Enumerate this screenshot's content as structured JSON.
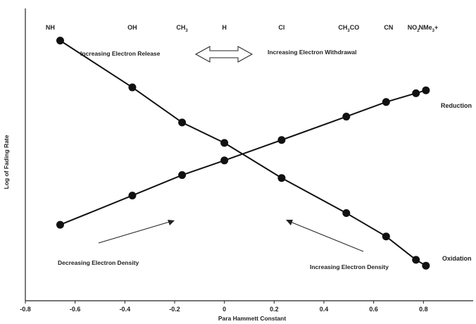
{
  "chart_data": {
    "type": "line",
    "xlabel": "Para Hammett Constant",
    "ylabel": "Log of Fading Rate",
    "xlim": [
      -0.8,
      1.0
    ],
    "x_ticks": [
      "-0.8",
      "-0.6",
      "-0.4",
      "-0.2",
      "0",
      "0.2",
      "0.4",
      "0.6",
      "0.8"
    ],
    "grid": false,
    "substituents": [
      {
        "label": "NH",
        "x": -0.7
      },
      {
        "label": "OH",
        "x": -0.37
      },
      {
        "label": "CH",
        "sub": "3",
        "x": -0.17
      },
      {
        "label": "H",
        "x": 0.0
      },
      {
        "label": "Cl",
        "x": 0.23
      },
      {
        "label": "CH",
        "sub": "3",
        "suffix": "CO",
        "x": 0.5
      },
      {
        "label": "CN",
        "x": 0.66
      },
      {
        "label": "NO",
        "sub": "2",
        "x": 0.76
      },
      {
        "label": "NMe",
        "sub": "3",
        "suffix": "+",
        "x": 0.82
      }
    ],
    "series": [
      {
        "name": "Reduction",
        "x": [
          -0.66,
          -0.37,
          -0.17,
          0.0,
          0.23,
          0.49,
          0.65,
          0.77,
          0.81
        ],
        "y": [
          0.26,
          0.36,
          0.43,
          0.48,
          0.55,
          0.63,
          0.68,
          0.71,
          0.72
        ]
      },
      {
        "name": "Oxidation",
        "x": [
          -0.66,
          -0.37,
          -0.17,
          0.0,
          0.23,
          0.49,
          0.65,
          0.77,
          0.81
        ],
        "y": [
          0.89,
          0.73,
          0.61,
          0.54,
          0.42,
          0.3,
          0.22,
          0.14,
          0.12
        ]
      }
    ],
    "annotations": {
      "release": "Increasing Electron Release",
      "withdrawal": "Increasing Electron Withdrawal",
      "decreasing_density": "Decreasing Electron Density",
      "increasing_density": "Increasing Electron Density"
    }
  }
}
